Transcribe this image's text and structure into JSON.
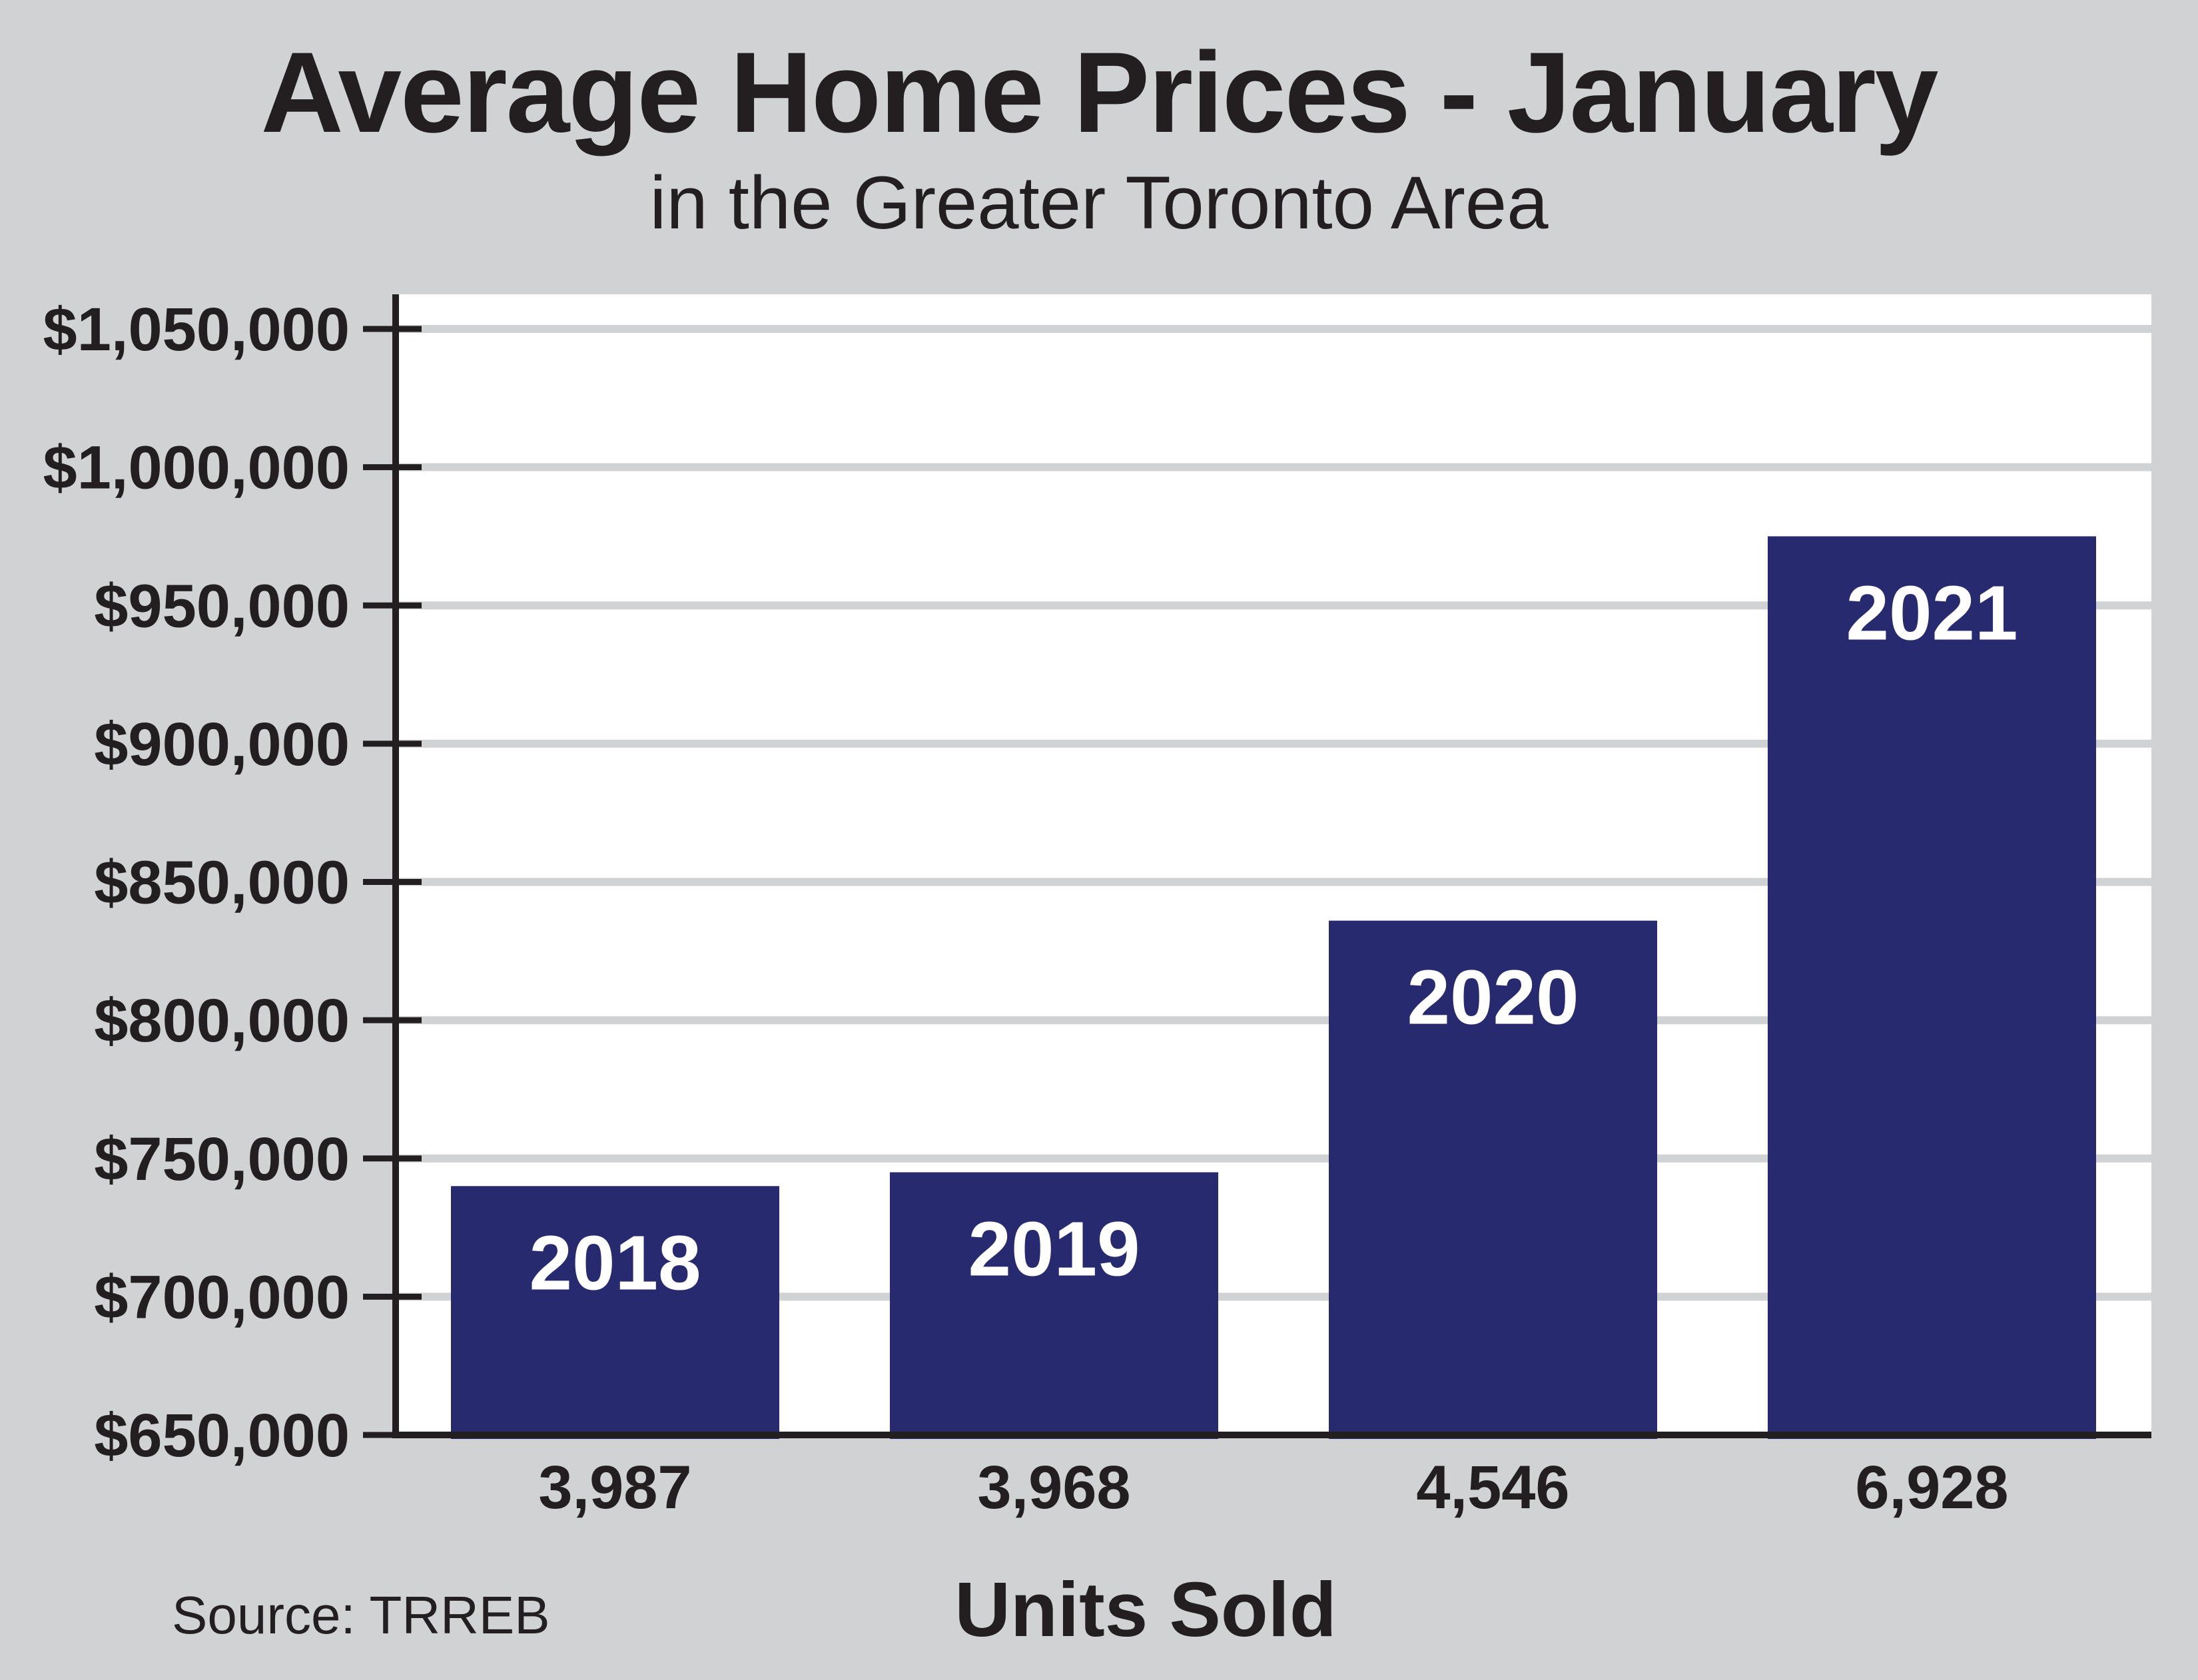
{
  "chart_data": {
    "type": "bar",
    "title": "Average Home Prices - January",
    "subtitle": "in the Greater Toronto Area",
    "xlabel": "Units Sold",
    "ylabel": "",
    "ylim": [
      650000,
      1050000
    ],
    "yticks": [
      650000,
      700000,
      750000,
      800000,
      850000,
      900000,
      950000,
      1000000,
      1050000
    ],
    "ytick_labels": [
      "$650,000",
      "$700,000",
      "$750,000",
      "$800,000",
      "$850,000",
      "$900,000",
      "$950,000",
      "$1,000,000",
      "$1,050,000"
    ],
    "categories": [
      "3,987",
      "3,968",
      "4,546",
      "6,928"
    ],
    "bar_labels": [
      "2018",
      "2019",
      "2020",
      "2021"
    ],
    "values": [
      740000,
      745000,
      836000,
      975000
    ],
    "grid": true,
    "legend": "none",
    "colors": {
      "bar": "#272a6f",
      "plot_bg": "#ffffff",
      "gridline": "#d1d2d4",
      "page_bg": "#d1d2d4",
      "axis": "#231f20"
    }
  },
  "source_note": "Source: TRREB"
}
